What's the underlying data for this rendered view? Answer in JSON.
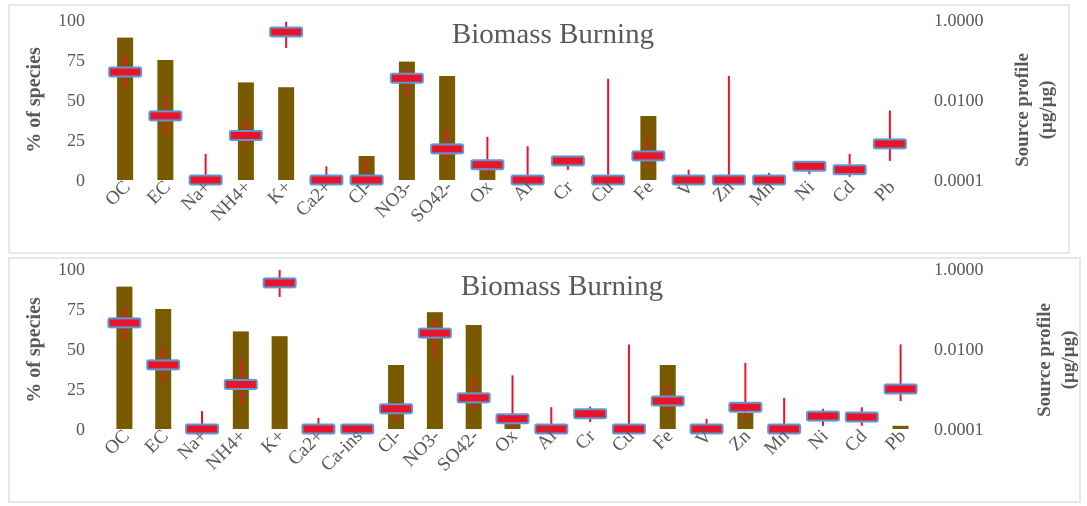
{
  "chart_data": [
    {
      "type": "bar",
      "title": "Biomass Burning",
      "ylabel": "%  of species",
      "y2label_line1": "Source profile",
      "y2label_line2": "(µg/µg)",
      "ylim": [
        0,
        100
      ],
      "yticks": [
        "0",
        "25",
        "50",
        "75",
        "100"
      ],
      "y2lim": [
        0.0001,
        1.0
      ],
      "y2scale": "log",
      "y2ticks": [
        {
          "value": 0.0001,
          "label": "0.0001"
        },
        {
          "value": 0.01,
          "label": "0.0100"
        },
        {
          "value": 1.0,
          "label": "1.0000"
        }
      ],
      "grid": false,
      "bar_color": "#7a5a00",
      "marker_color": "#e8152a",
      "marker_border": "#5b9bd5",
      "categories": [
        "OC",
        "EC",
        "Na+",
        "NH4+",
        "K+",
        "Ca2+",
        "Cl-",
        "NO3-",
        "SO42-",
        "Ox",
        "Al",
        "Cr",
        "Cu",
        "Fe",
        "V",
        "Zn",
        "Mn",
        "Ni",
        "Cd",
        "Pb"
      ],
      "series": [
        {
          "kind": "bar",
          "axis": "left",
          "values": [
            89,
            75,
            0,
            61,
            58,
            0,
            15,
            74,
            65,
            10,
            0,
            0,
            0,
            40,
            0,
            0,
            0,
            0,
            0,
            0
          ]
        },
        {
          "kind": "marker",
          "axis": "right",
          "values": [
            0.05,
            0.004,
            0.0001,
            0.0013,
            0.5,
            0.0001,
            0.0001,
            0.035,
            0.0006,
            0.00024,
            0.0001,
            0.0003,
            0.0001,
            0.0004,
            0.0001,
            0.0001,
            0.0001,
            0.00022,
            0.00018,
            0.0008
          ],
          "error_low": [
            0.02,
            0.0014,
            0.0001,
            0.0007,
            0.2,
            0.0001,
            0.0001,
            0.013,
            0.0003,
            0.00012,
            0.0001,
            0.00018,
            0.0001,
            0.00022,
            0.0001,
            0.0001,
            0.0001,
            0.00014,
            0.00012,
            0.0003
          ],
          "error_high": [
            0.13,
            0.012,
            0.00045,
            0.0035,
            0.9,
            0.00022,
            0.00035,
            0.06,
            0.0018,
            0.0012,
            0.0007,
            0.00032,
            0.034,
            0.0012,
            0.00018,
            0.04,
            0.00015,
            0.00029,
            0.00045,
            0.0055
          ]
        }
      ]
    },
    {
      "type": "bar",
      "title": "Biomass Burning",
      "ylabel": "%  of species",
      "y2label_line1": "Source profile",
      "y2label_line2": "(µg/µg)",
      "ylim": [
        0,
        100
      ],
      "yticks": [
        "0",
        "25",
        "50",
        "75",
        "100"
      ],
      "y2lim": [
        0.0001,
        1.0
      ],
      "y2scale": "log",
      "y2ticks": [
        {
          "value": 0.0001,
          "label": "0.0001"
        },
        {
          "value": 0.01,
          "label": "0.0100"
        },
        {
          "value": 1.0,
          "label": "1.0000"
        }
      ],
      "grid": false,
      "bar_color": "#7a5a00",
      "marker_color": "#e8152a",
      "marker_border": "#5b9bd5",
      "categories": [
        "OC",
        "EC",
        "Na+",
        "NH4+",
        "K+",
        "Ca2+",
        "Ca-ins",
        "Cl-",
        "NO3-",
        "SO42-",
        "Ox",
        "Al",
        "Cr",
        "Cu",
        "Fe",
        "V",
        "Zn",
        "Mn",
        "Ni",
        "Cd",
        "Pb"
      ],
      "series": [
        {
          "kind": "bar",
          "axis": "left",
          "values": [
            89,
            75,
            0,
            61,
            58,
            0,
            0,
            40,
            73,
            65,
            7,
            0,
            0,
            0,
            40,
            0,
            10,
            0,
            0,
            0,
            2
          ]
        },
        {
          "kind": "marker",
          "axis": "right",
          "values": [
            0.045,
            0.004,
            0.0001,
            0.0013,
            0.45,
            0.0001,
            0.0001,
            0.00032,
            0.025,
            0.0006,
            0.00018,
            0.0001,
            0.00024,
            0.0001,
            0.0005,
            0.0001,
            0.00035,
            0.0001,
            0.00021,
            0.0002,
            0.001
          ],
          "error_low": [
            0.017,
            0.0015,
            0.0001,
            0.0004,
            0.2,
            0.0001,
            0.0001,
            0.00017,
            0.006,
            0.0003,
            0.0001,
            0.0001,
            0.00015,
            0.0001,
            0.00028,
            0.0001,
            0.00018,
            0.0001,
            0.00012,
            0.00012,
            0.0005
          ],
          "error_high": [
            0.11,
            0.011,
            0.00028,
            0.0055,
            0.95,
            0.00019,
            0.0001,
            0.00048,
            0.055,
            0.0022,
            0.0022,
            0.00035,
            0.00036,
            0.013,
            0.0012,
            0.00018,
            0.0045,
            0.0006,
            0.00032,
            0.00035,
            0.013
          ]
        }
      ]
    }
  ]
}
